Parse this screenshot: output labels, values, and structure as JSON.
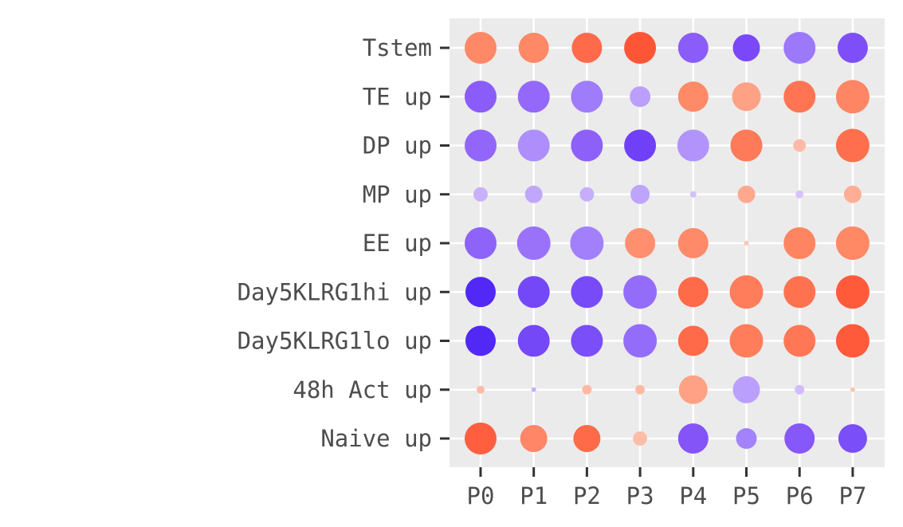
{
  "chart_data": {
    "type": "scatter",
    "title": "",
    "xlabel": "",
    "ylabel": "",
    "grid": true,
    "legend": "none",
    "panel_background": "#ebebeb",
    "grid_color": "#ffffff",
    "tick_color": "#333333",
    "x_categories": [
      "P0",
      "P1",
      "P2",
      "P3",
      "P4",
      "P5",
      "P6",
      "P7"
    ],
    "y_categories": [
      "Tstem",
      "TE up",
      "DP up",
      "MP up",
      "EE up",
      "Day5KLRG1hi up",
      "Day5KLRG1lo up",
      "48h Act up",
      "Naive up"
    ],
    "points": [
      {
        "x": "P0",
        "y": "Tstem",
        "size": 20,
        "color": "#ff8866"
      },
      {
        "x": "P1",
        "y": "Tstem",
        "size": 19,
        "color": "#ff8866"
      },
      {
        "x": "P2",
        "y": "Tstem",
        "size": 19,
        "color": "#ff6a4a"
      },
      {
        "x": "P3",
        "y": "Tstem",
        "size": 20,
        "color": "#ff5537"
      },
      {
        "x": "P4",
        "y": "Tstem",
        "size": 19,
        "color": "#8a5cf9"
      },
      {
        "x": "P5",
        "y": "Tstem",
        "size": 17,
        "color": "#7a48f8"
      },
      {
        "x": "P6",
        "y": "Tstem",
        "size": 20,
        "color": "#9c78fa"
      },
      {
        "x": "P7",
        "y": "Tstem",
        "size": 19,
        "color": "#7e4ff8"
      },
      {
        "x": "P0",
        "y": "TE up",
        "size": 20,
        "color": "#8a5cf9"
      },
      {
        "x": "P1",
        "y": "TE up",
        "size": 20,
        "color": "#9468fa"
      },
      {
        "x": "P2",
        "y": "TE up",
        "size": 20,
        "color": "#9e7cfb"
      },
      {
        "x": "P3",
        "y": "TE up",
        "size": 13,
        "color": "#bb9ffc"
      },
      {
        "x": "P4",
        "y": "TE up",
        "size": 19,
        "color": "#ff8a68"
      },
      {
        "x": "P5",
        "y": "TE up",
        "size": 18,
        "color": "#ffa184"
      },
      {
        "x": "P6",
        "y": "TE up",
        "size": 20,
        "color": "#ff7553"
      },
      {
        "x": "P7",
        "y": "TE up",
        "size": 21,
        "color": "#ff8664"
      },
      {
        "x": "P0",
        "y": "DP up",
        "size": 20,
        "color": "#9266fa"
      },
      {
        "x": "P1",
        "y": "DP up",
        "size": 20,
        "color": "#ad8efb"
      },
      {
        "x": "P2",
        "y": "DP up",
        "size": 20,
        "color": "#8d60f9"
      },
      {
        "x": "P3",
        "y": "DP up",
        "size": 20,
        "color": "#7040f8"
      },
      {
        "x": "P4",
        "y": "DP up",
        "size": 20,
        "color": "#b293fc"
      },
      {
        "x": "P5",
        "y": "DP up",
        "size": 20,
        "color": "#ff7a58"
      },
      {
        "x": "P6",
        "y": "DP up",
        "size": 8,
        "color": "#ffbba7"
      },
      {
        "x": "P7",
        "y": "DP up",
        "size": 21,
        "color": "#ff6f4d"
      },
      {
        "x": "P0",
        "y": "MP up",
        "size": 9,
        "color": "#c9b0fc"
      },
      {
        "x": "P1",
        "y": "MP up",
        "size": 11,
        "color": "#c1a7fc"
      },
      {
        "x": "P2",
        "y": "MP up",
        "size": 9,
        "color": "#c7aefc"
      },
      {
        "x": "P3",
        "y": "MP up",
        "size": 12,
        "color": "#bea4fc"
      },
      {
        "x": "P4",
        "y": "MP up",
        "size": 4,
        "color": "#d2bffd"
      },
      {
        "x": "P5",
        "y": "MP up",
        "size": 11,
        "color": "#ffa88d"
      },
      {
        "x": "P6",
        "y": "MP up",
        "size": 5,
        "color": "#d5c3fd"
      },
      {
        "x": "P7",
        "y": "MP up",
        "size": 11,
        "color": "#ffae95"
      },
      {
        "x": "P0",
        "y": "EE up",
        "size": 20,
        "color": "#8e63f9"
      },
      {
        "x": "P1",
        "y": "EE up",
        "size": 21,
        "color": "#9a72fa"
      },
      {
        "x": "P2",
        "y": "EE up",
        "size": 21,
        "color": "#a380fb"
      },
      {
        "x": "P3",
        "y": "EE up",
        "size": 19,
        "color": "#ff8f6f"
      },
      {
        "x": "P4",
        "y": "EE up",
        "size": 19,
        "color": "#ff8a69"
      },
      {
        "x": "P5",
        "y": "EE up",
        "size": 3,
        "color": "#ffc4b3"
      },
      {
        "x": "P6",
        "y": "EE up",
        "size": 20,
        "color": "#ff8562"
      },
      {
        "x": "P7",
        "y": "EE up",
        "size": 21,
        "color": "#ff8865"
      },
      {
        "x": "P0",
        "y": "Day5KLRG1hi up",
        "size": 19,
        "color": "#5228f6"
      },
      {
        "x": "P1",
        "y": "Day5KLRG1hi up",
        "size": 20,
        "color": "#7548f7"
      },
      {
        "x": "P2",
        "y": "Day5KLRG1hi up",
        "size": 20,
        "color": "#784bf8"
      },
      {
        "x": "P3",
        "y": "Day5KLRG1hi up",
        "size": 21,
        "color": "#946cfa"
      },
      {
        "x": "P4",
        "y": "Day5KLRG1hi up",
        "size": 19,
        "color": "#ff6a48"
      },
      {
        "x": "P5",
        "y": "Day5KLRG1hi up",
        "size": 21,
        "color": "#ff7d5a"
      },
      {
        "x": "P6",
        "y": "Day5KLRG1hi up",
        "size": 20,
        "color": "#ff7250"
      },
      {
        "x": "P7",
        "y": "Day5KLRG1hi up",
        "size": 21,
        "color": "#ff5a3a"
      },
      {
        "x": "P0",
        "y": "Day5KLRG1lo up",
        "size": 19,
        "color": "#5228f6"
      },
      {
        "x": "P1",
        "y": "Day5KLRG1lo up",
        "size": 20,
        "color": "#7548f7"
      },
      {
        "x": "P2",
        "y": "Day5KLRG1lo up",
        "size": 20,
        "color": "#7a4ef8"
      },
      {
        "x": "P3",
        "y": "Day5KLRG1lo up",
        "size": 21,
        "color": "#946cfa"
      },
      {
        "x": "P4",
        "y": "Day5KLRG1lo up",
        "size": 19,
        "color": "#ff6a48"
      },
      {
        "x": "P5",
        "y": "Day5KLRG1lo up",
        "size": 21,
        "color": "#ff7d5a"
      },
      {
        "x": "P6",
        "y": "Day5KLRG1lo up",
        "size": 20,
        "color": "#ff7755"
      },
      {
        "x": "P7",
        "y": "Day5KLRG1lo up",
        "size": 21,
        "color": "#ff5a3a"
      },
      {
        "x": "P0",
        "y": "48h Act up",
        "size": 5,
        "color": "#ffbba7"
      },
      {
        "x": "P1",
        "y": "48h Act up",
        "size": 3,
        "color": "#c9b0fc"
      },
      {
        "x": "P2",
        "y": "48h Act up",
        "size": 6,
        "color": "#ffb9a5"
      },
      {
        "x": "P3",
        "y": "48h Act up",
        "size": 6,
        "color": "#ffb9a5"
      },
      {
        "x": "P4",
        "y": "48h Act up",
        "size": 18,
        "color": "#ffa185"
      },
      {
        "x": "P5",
        "y": "48h Act up",
        "size": 17,
        "color": "#bb9ffc"
      },
      {
        "x": "P6",
        "y": "48h Act up",
        "size": 6,
        "color": "#d0bcfd"
      },
      {
        "x": "P7",
        "y": "48h Act up",
        "size": 3,
        "color": "#ffc4b3"
      },
      {
        "x": "P0",
        "y": "Naive up",
        "size": 20,
        "color": "#ff5f3f"
      },
      {
        "x": "P1",
        "y": "Naive up",
        "size": 17,
        "color": "#ff8767"
      },
      {
        "x": "P2",
        "y": "Naive up",
        "size": 17,
        "color": "#ff6a49"
      },
      {
        "x": "P3",
        "y": "Naive up",
        "size": 9,
        "color": "#ffbda9"
      },
      {
        "x": "P4",
        "y": "Naive up",
        "size": 19,
        "color": "#8454f9"
      },
      {
        "x": "P5",
        "y": "Naive up",
        "size": 13,
        "color": "#a482fb"
      },
      {
        "x": "P6",
        "y": "Naive up",
        "size": 19,
        "color": "#8658f9"
      },
      {
        "x": "P7",
        "y": "Naive up",
        "size": 18,
        "color": "#7a4ef8"
      }
    ]
  }
}
